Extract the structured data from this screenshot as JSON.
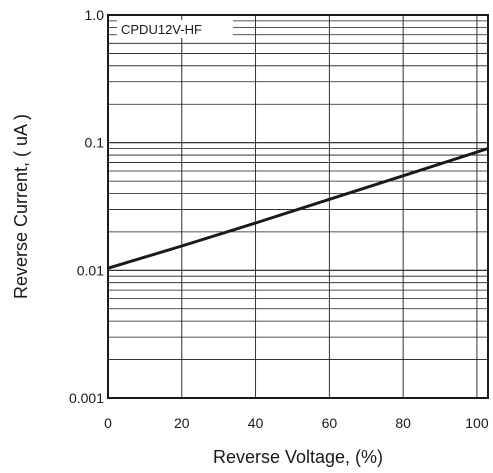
{
  "chart_data": {
    "type": "line",
    "xlabel": "Reverse Voltage, (%)",
    "ylabel": "Reverse Current, ( uA )",
    "xlim": [
      0,
      103
    ],
    "ylim": [
      0.001,
      1.0
    ],
    "y_scale": "log",
    "grid": true,
    "x_ticks": [
      0,
      20,
      40,
      60,
      80,
      100
    ],
    "x_tick_labels": [
      "0",
      "20",
      "40",
      "60",
      "80",
      "100"
    ],
    "y_ticks": [
      0.001,
      0.01,
      0.1,
      1.0
    ],
    "y_tick_labels": [
      "0.001",
      "0.01",
      "0.1",
      "1.0"
    ],
    "legend": {
      "position": "top-left",
      "label": "CPDU12V-HF"
    },
    "series": [
      {
        "name": "CPDU12V-HF",
        "color": "#1a1a1a",
        "x": [
          0,
          20,
          40,
          60,
          80,
          103
        ],
        "y": [
          0.0104,
          0.0155,
          0.0235,
          0.036,
          0.055,
          0.09
        ]
      }
    ]
  }
}
